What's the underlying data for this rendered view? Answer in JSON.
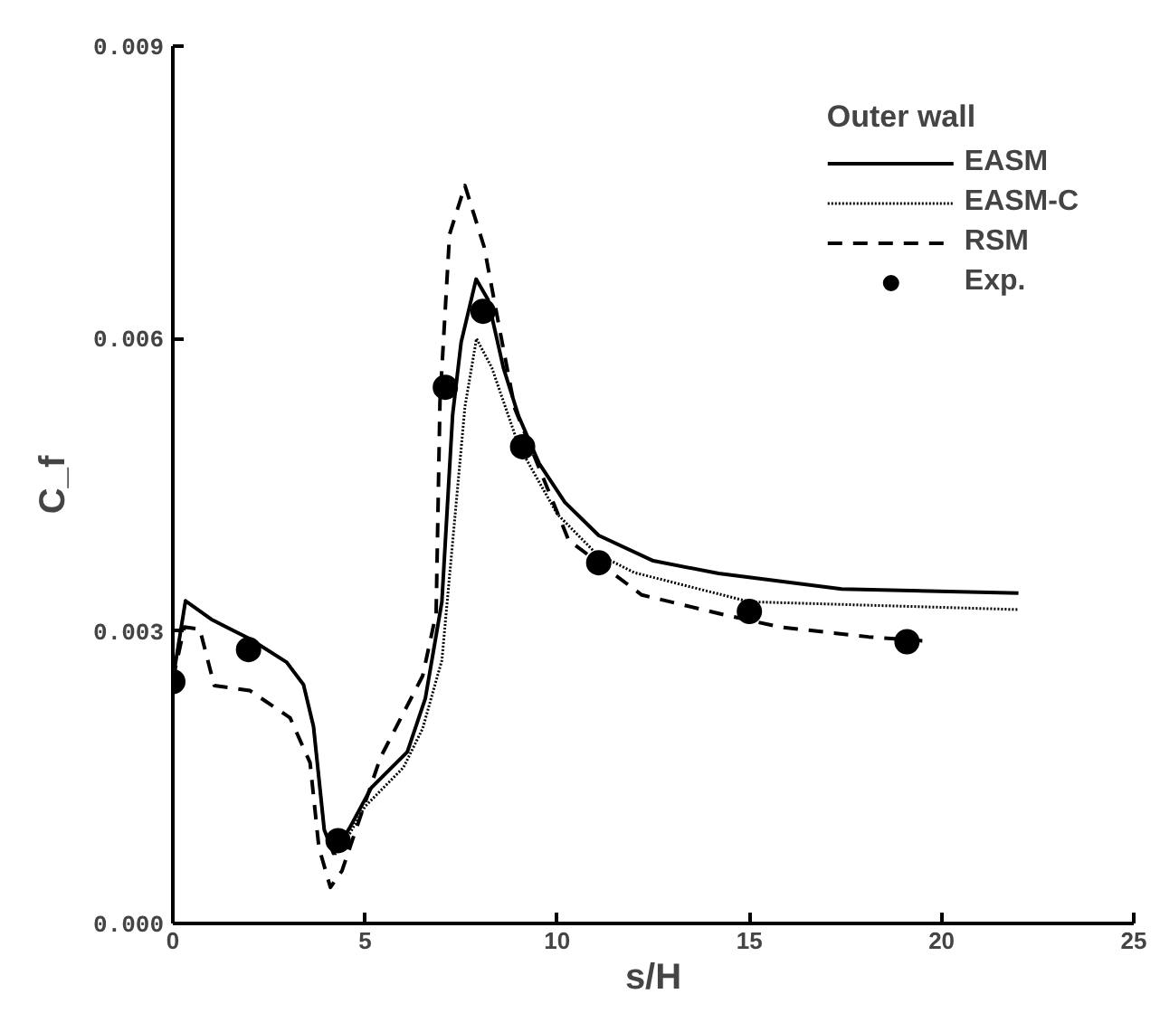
{
  "chart_data": {
    "type": "line",
    "xlabel": "s/H",
    "ylabel": "C_f",
    "legend_title": "Outer wall",
    "legend": "top right",
    "grid": false,
    "xlim": [
      0,
      25
    ],
    "ylim": [
      0,
      0.009
    ],
    "xticks": [
      0,
      5,
      10,
      15,
      20,
      25
    ],
    "yticks": [
      {
        "value": 0,
        "label": "0.000"
      },
      {
        "value": 0.003,
        "label": "0.003"
      },
      {
        "value": 0.006,
        "label": "0.006"
      },
      {
        "value": 0.009,
        "label": "0.009"
      }
    ],
    "series": [
      {
        "name": "EASM",
        "line_style": "solid",
        "color": "#000000",
        "x": [
          0,
          0.33,
          1.0,
          2.0,
          2.96,
          3.4,
          3.66,
          3.94,
          4.18,
          4.6,
          5.16,
          6.1,
          6.57,
          7.0,
          7.28,
          7.5,
          7.89,
          8.2,
          8.6,
          9.0,
          9.53,
          10.2,
          11.08,
          12.5,
          14.2,
          17.4,
          22.0
        ],
        "values": [
          0.0025,
          0.00331,
          0.00312,
          0.00292,
          0.00268,
          0.00245,
          0.00202,
          0.00096,
          0.00072,
          0.00098,
          0.00139,
          0.00176,
          0.00231,
          0.0033,
          0.00522,
          0.00596,
          0.00661,
          0.0064,
          0.0057,
          0.0052,
          0.00472,
          0.00432,
          0.00398,
          0.00372,
          0.00359,
          0.00343,
          0.00339
        ]
      },
      {
        "name": "EASM-C",
        "line_style": "dotted",
        "color": "#000000",
        "x": [
          0,
          0.33,
          1.0,
          2.0,
          2.96,
          3.4,
          3.66,
          3.94,
          4.2,
          4.6,
          5.0,
          6.0,
          6.5,
          7.0,
          7.3,
          7.6,
          7.9,
          8.3,
          9.0,
          10.0,
          11.0,
          12.0,
          15.0,
          22.0
        ],
        "values": [
          0.0025,
          0.00331,
          0.00312,
          0.00292,
          0.00268,
          0.00245,
          0.00202,
          0.00096,
          0.0007,
          0.00092,
          0.0012,
          0.0016,
          0.002,
          0.0027,
          0.004,
          0.0053,
          0.006,
          0.0057,
          0.0049,
          0.0042,
          0.0038,
          0.0036,
          0.0033,
          0.00322
        ]
      },
      {
        "name": "RSM",
        "line_style": "dashed",
        "color": "#000000",
        "x": [
          0,
          0.3,
          0.7,
          1.08,
          2.0,
          3.05,
          3.57,
          3.8,
          4.1,
          4.4,
          5.4,
          6.5,
          6.85,
          6.95,
          7.2,
          7.6,
          8.1,
          8.5,
          8.9,
          10.3,
          12.2,
          14.2,
          15.8,
          18.1,
          19.5
        ],
        "values": [
          0.0025,
          0.00304,
          0.00302,
          0.00244,
          0.00239,
          0.00211,
          0.00165,
          0.00078,
          0.00037,
          0.00054,
          0.0017,
          0.00254,
          0.00318,
          0.00535,
          0.00707,
          0.00757,
          0.00694,
          0.0061,
          0.00528,
          0.00393,
          0.00337,
          0.00318,
          0.00304,
          0.00294,
          0.0029
        ]
      },
      {
        "name": "Exp.",
        "type": "scatter",
        "marker": "circle",
        "color": "#000000",
        "x": [
          0,
          1.97,
          4.3,
          7.09,
          8.07,
          9.1,
          11.08,
          15.0,
          19.1
        ],
        "values": [
          0.00248,
          0.00281,
          0.00085,
          0.0055,
          0.00628,
          0.00489,
          0.0037,
          0.0032,
          0.00289
        ]
      }
    ]
  }
}
